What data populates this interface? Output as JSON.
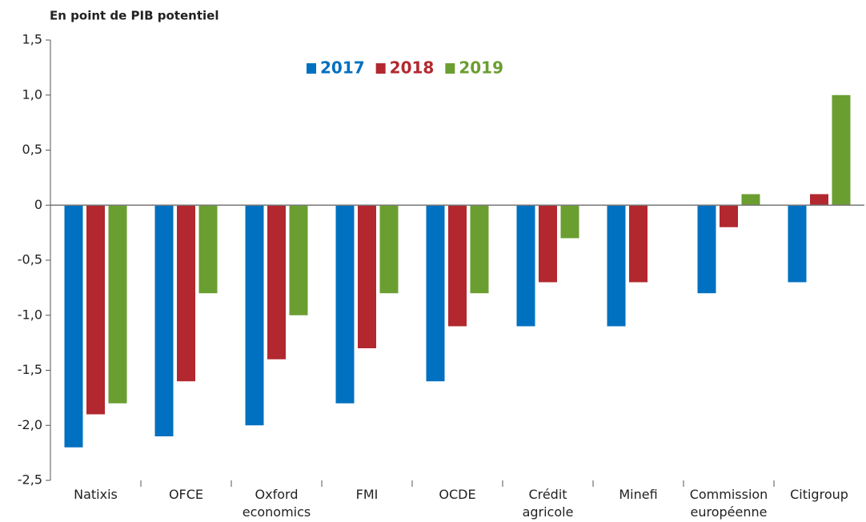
{
  "chart_data": {
    "type": "bar",
    "title": "En point de PIB potentiel",
    "categories": [
      "Natixis",
      "OFCE",
      "Oxford\neconomics",
      "FMI",
      "OCDE",
      "Crédit\nagricole",
      "Minefi",
      "Commission\neuropéenne",
      "Citigroup"
    ],
    "series": [
      {
        "name": "2017",
        "color": "#0070c0",
        "values": [
          -2.2,
          -2.1,
          -2.0,
          -1.8,
          -1.6,
          -1.1,
          -1.1,
          -0.8,
          -0.7
        ]
      },
      {
        "name": "2018",
        "color": "#b2282e",
        "values": [
          -1.9,
          -1.6,
          -1.4,
          -1.3,
          -1.1,
          -0.7,
          -0.7,
          -0.2,
          0.1
        ]
      },
      {
        "name": "2019",
        "color": "#6b9e30",
        "values": [
          -1.8,
          -0.8,
          -1.0,
          -0.8,
          -0.8,
          -0.3,
          null,
          0.1,
          1.0
        ]
      }
    ],
    "ylim": [
      -2.5,
      1.5
    ],
    "yticks": [
      {
        "value": -2.5,
        "label": "-2,5"
      },
      {
        "value": -2.0,
        "label": "-2,0"
      },
      {
        "value": -1.5,
        "label": "-1,5"
      },
      {
        "value": -1.0,
        "label": "-1,0"
      },
      {
        "value": -0.5,
        "label": "-0,5"
      },
      0,
      {
        "value": 0.5,
        "label": "0,5"
      },
      {
        "value": 1.0,
        "label": "1,0"
      },
      {
        "value": 1.5,
        "label": "1,5"
      }
    ],
    "legend": "top"
  }
}
